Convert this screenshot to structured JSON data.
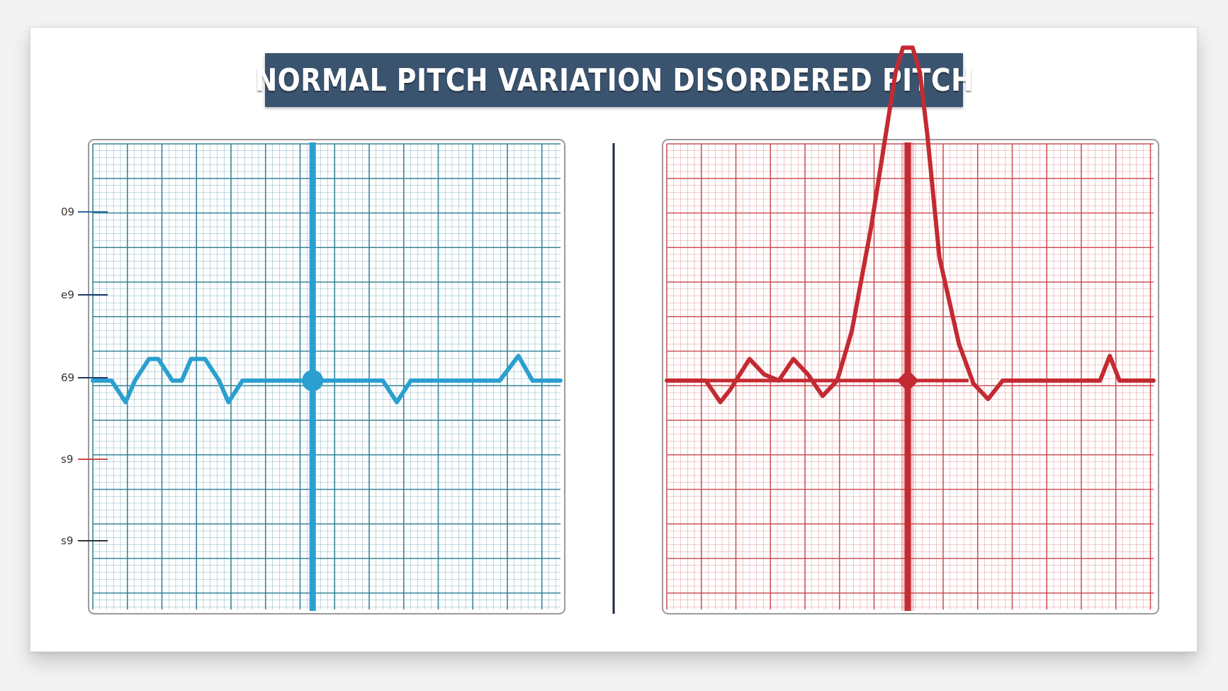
{
  "title": "NORMAL PITCH VARIATION DISORDERED PITCH",
  "colors": {
    "banner": "#3a5470",
    "normal_line": "#2a9fd0",
    "normal_grid": "#2d7f94",
    "disordered_line": "#c42a32",
    "disordered_grid": "#cc4a4f",
    "divider": "#1c2a48"
  },
  "chart_data": [
    {
      "type": "line",
      "name": "normal",
      "grid": true,
      "color": "#2a9fd0",
      "y_tick_labels": [
        "09",
        "e9",
        "69",
        "s9",
        "s9"
      ],
      "xlim": [
        0,
        100
      ],
      "ylim": [
        0,
        100
      ],
      "cursor_x": 47,
      "marker": {
        "x": 47,
        "y": 50
      },
      "x": [
        0,
        4,
        7,
        9,
        12,
        14,
        17,
        19,
        21,
        24,
        27,
        29,
        32,
        47,
        62,
        65,
        68,
        87,
        91,
        94,
        100
      ],
      "y": [
        50,
        50,
        46.5,
        50,
        53.5,
        53.5,
        50,
        50,
        53.5,
        53.5,
        50,
        46.5,
        50,
        50,
        50,
        46.5,
        50,
        50,
        54,
        50,
        50
      ]
    },
    {
      "type": "line",
      "name": "disordered",
      "grid": true,
      "color": "#c42a32",
      "xlim": [
        0,
        100
      ],
      "ylim": [
        0,
        100
      ],
      "cursor_x": 49.5,
      "marker": {
        "x": 49.5,
        "y": 50
      },
      "reference_line": {
        "x_start": 0,
        "x_end": 62,
        "y": 50
      },
      "x": [
        0,
        8,
        11,
        13,
        17,
        20,
        23,
        26,
        29,
        32,
        35,
        38,
        42,
        45,
        47,
        48.5,
        49.5,
        50.5,
        52,
        53.5,
        56,
        60,
        63,
        66,
        69,
        89,
        91,
        93,
        100
      ],
      "y": [
        50,
        50,
        46.5,
        48.5,
        53.5,
        51,
        50,
        53.5,
        51,
        47.5,
        50,
        58,
        75,
        90,
        100,
        104,
        104,
        104,
        100,
        90,
        70,
        56,
        49.5,
        47,
        50,
        50,
        54,
        50,
        50
      ]
    }
  ]
}
